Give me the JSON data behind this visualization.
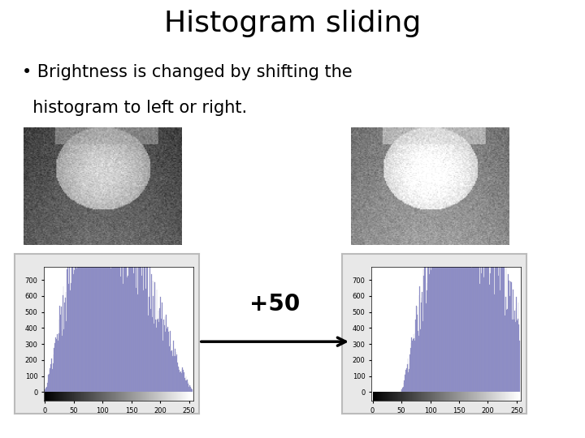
{
  "title": "Histogram sliding",
  "bullet_line1": "• Brightness is changed by shifting the",
  "bullet_line2": "  histogram to left or right.",
  "arrow_label": "+50",
  "bg_color": "#ffffff",
  "title_fontsize": 26,
  "bullet_fontsize": 15,
  "hist_bar_color": "#8888cc",
  "hist_bar_edge": "#9999bb",
  "hist_xlim": [
    0,
    255
  ],
  "hist_ylim": [
    0,
    780
  ],
  "hist_yticks": [
    0,
    100,
    200,
    300,
    400,
    500,
    600,
    700
  ],
  "hist_xticks": [
    0,
    50,
    100,
    150,
    200,
    250
  ],
  "shift": 50,
  "seed": 12345,
  "panel_bg": "#e8e8e8",
  "hist_bg": "#ffffff"
}
